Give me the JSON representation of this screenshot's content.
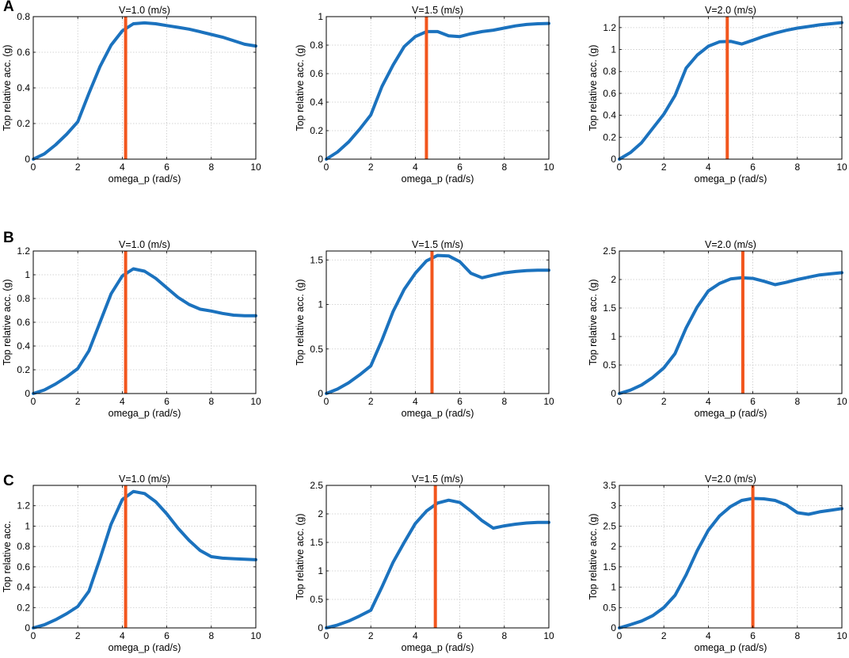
{
  "figure": {
    "row_labels": [
      "A",
      "B",
      "C"
    ]
  },
  "chart_data": [
    {
      "type": "line",
      "row": "A",
      "title": "V=1.0 (m/s)",
      "xlabel": "omega_p (rad/s)",
      "ylabel": "Top relative acc. (g)",
      "xlim": [
        0,
        10
      ],
      "ylim": [
        0,
        0.8
      ],
      "xticks": [
        0,
        2,
        4,
        6,
        8,
        10
      ],
      "yticks": [
        0,
        0.2,
        0.4,
        0.6,
        0.8
      ],
      "x": [
        0,
        0.5,
        1,
        1.5,
        2,
        2.5,
        3,
        3.5,
        4,
        4.5,
        5,
        5.5,
        6,
        6.5,
        7,
        7.5,
        8,
        8.5,
        9,
        9.5,
        10
      ],
      "y": [
        0,
        0.03,
        0.08,
        0.14,
        0.21,
        0.37,
        0.52,
        0.64,
        0.72,
        0.76,
        0.765,
        0.76,
        0.75,
        0.74,
        0.73,
        0.715,
        0.7,
        0.685,
        0.665,
        0.645,
        0.635
      ],
      "vline": 4.15,
      "grid": true
    },
    {
      "type": "line",
      "row": "A",
      "title": "V=1.5 (m/s)",
      "xlabel": "omega_p (rad/s)",
      "ylabel": "Top relative acc. (g)",
      "xlim": [
        0,
        10
      ],
      "ylim": [
        0,
        1
      ],
      "xticks": [
        0,
        2,
        4,
        6,
        8,
        10
      ],
      "yticks": [
        0,
        0.2,
        0.4,
        0.6,
        0.8,
        1
      ],
      "x": [
        0,
        0.5,
        1,
        1.5,
        2,
        2.5,
        3,
        3.5,
        4,
        4.5,
        5,
        5.5,
        6,
        6.5,
        7,
        7.5,
        8,
        8.5,
        9,
        9.5,
        10
      ],
      "y": [
        0,
        0.05,
        0.12,
        0.21,
        0.31,
        0.51,
        0.66,
        0.79,
        0.86,
        0.895,
        0.895,
        0.865,
        0.86,
        0.88,
        0.895,
        0.905,
        0.92,
        0.935,
        0.945,
        0.95,
        0.952
      ],
      "vline": 4.5,
      "grid": true
    },
    {
      "type": "line",
      "row": "A",
      "title": "V=2.0 (m/s)",
      "xlabel": "omega_p (rad/s)",
      "ylabel": "Top relative acc. (g)",
      "xlim": [
        0,
        10
      ],
      "ylim": [
        0,
        1.3
      ],
      "xticks": [
        0,
        2,
        4,
        6,
        8,
        10
      ],
      "yticks": [
        0,
        0.2,
        0.4,
        0.6,
        0.8,
        1,
        1.2
      ],
      "x": [
        0,
        0.5,
        1,
        1.5,
        2,
        2.5,
        3,
        3.5,
        4,
        4.5,
        5,
        5.5,
        6,
        6.5,
        7,
        7.5,
        8,
        8.5,
        9,
        9.5,
        10
      ],
      "y": [
        0,
        0.06,
        0.15,
        0.28,
        0.41,
        0.58,
        0.83,
        0.95,
        1.03,
        1.07,
        1.075,
        1.05,
        1.085,
        1.12,
        1.15,
        1.175,
        1.195,
        1.21,
        1.225,
        1.235,
        1.245
      ],
      "vline": 4.85,
      "grid": true
    },
    {
      "type": "line",
      "row": "B",
      "title": "V=1.0 (m/s)",
      "xlabel": "omega_p (rad/s)",
      "ylabel": "Top relative acc. (g)",
      "xlim": [
        0,
        10
      ],
      "ylim": [
        0,
        1.2
      ],
      "xticks": [
        0,
        2,
        4,
        6,
        8,
        10
      ],
      "yticks": [
        0,
        0.2,
        0.4,
        0.6,
        0.8,
        1,
        1.2
      ],
      "x": [
        0,
        0.5,
        1,
        1.5,
        2,
        2.5,
        3,
        3.5,
        4,
        4.5,
        5,
        5.5,
        6,
        6.5,
        7,
        7.5,
        8,
        8.5,
        9,
        9.5,
        10
      ],
      "y": [
        0,
        0.03,
        0.08,
        0.14,
        0.21,
        0.36,
        0.6,
        0.84,
        0.99,
        1.05,
        1.03,
        0.97,
        0.89,
        0.81,
        0.75,
        0.71,
        0.695,
        0.675,
        0.66,
        0.655,
        0.655
      ],
      "vline": 4.15,
      "grid": true
    },
    {
      "type": "line",
      "row": "B",
      "title": "V=1.5 (m/s)",
      "xlabel": "omega_p (rad/s)",
      "ylabel": "Top relative acc. (g)",
      "xlim": [
        0,
        10
      ],
      "ylim": [
        0,
        1.6
      ],
      "xticks": [
        0,
        2,
        4,
        6,
        8,
        10
      ],
      "yticks": [
        0,
        0.5,
        1,
        1.5
      ],
      "x": [
        0,
        0.5,
        1,
        1.5,
        2,
        2.5,
        3,
        3.5,
        4,
        4.5,
        5,
        5.5,
        6,
        6.5,
        7,
        7.5,
        8,
        8.5,
        9,
        9.5,
        10
      ],
      "y": [
        0,
        0.05,
        0.12,
        0.21,
        0.31,
        0.6,
        0.92,
        1.17,
        1.35,
        1.49,
        1.55,
        1.545,
        1.48,
        1.35,
        1.3,
        1.33,
        1.355,
        1.37,
        1.38,
        1.385,
        1.385
      ],
      "vline": 4.75,
      "grid": true
    },
    {
      "type": "line",
      "row": "B",
      "title": "V=2.0 (m/s)",
      "xlabel": "omega_p (rad/s)",
      "ylabel": "Top relative acc. (g)",
      "xlim": [
        0,
        10
      ],
      "ylim": [
        0,
        2.5
      ],
      "xticks": [
        0,
        2,
        4,
        6,
        8,
        10
      ],
      "yticks": [
        0,
        0.5,
        1,
        1.5,
        2,
        2.5
      ],
      "x": [
        0,
        0.5,
        1,
        1.5,
        2,
        2.5,
        3,
        3.5,
        4,
        4.5,
        5,
        5.5,
        6,
        6.5,
        7,
        7.5,
        8,
        8.5,
        9,
        9.5,
        10
      ],
      "y": [
        0,
        0.06,
        0.15,
        0.28,
        0.45,
        0.7,
        1.15,
        1.52,
        1.8,
        1.93,
        2.01,
        2.03,
        2.02,
        1.97,
        1.91,
        1.95,
        2.0,
        2.04,
        2.08,
        2.1,
        2.12
      ],
      "vline": 5.55,
      "grid": true
    },
    {
      "type": "line",
      "row": "C",
      "title": "V=1.0 (m/s)",
      "xlabel": "omega_p (rad/s)",
      "ylabel": "Top relative acc.",
      "xlim": [
        0,
        10
      ],
      "ylim": [
        0,
        1.4
      ],
      "xticks": [
        0,
        2,
        4,
        6,
        8,
        10
      ],
      "yticks": [
        0,
        0.2,
        0.4,
        0.6,
        0.8,
        1,
        1.2
      ],
      "x": [
        0,
        0.5,
        1,
        1.5,
        2,
        2.5,
        3,
        3.5,
        4,
        4.5,
        5,
        5.5,
        6,
        6.5,
        7,
        7.5,
        8,
        8.5,
        9,
        9.5,
        10
      ],
      "y": [
        0,
        0.03,
        0.08,
        0.14,
        0.21,
        0.36,
        0.68,
        1.02,
        1.26,
        1.34,
        1.32,
        1.24,
        1.12,
        0.98,
        0.86,
        0.76,
        0.7,
        0.685,
        0.68,
        0.675,
        0.67
      ],
      "vline": 4.15,
      "grid": true
    },
    {
      "type": "line",
      "row": "C",
      "title": "V=1.5 (m/s)",
      "xlabel": "omega_p (rad/s)",
      "ylabel": "Top relative acc. (g)",
      "xlim": [
        0,
        10
      ],
      "ylim": [
        0,
        2.5
      ],
      "xticks": [
        0,
        2,
        4,
        6,
        8,
        10
      ],
      "yticks": [
        0,
        0.5,
        1,
        1.5,
        2,
        2.5
      ],
      "x": [
        0,
        0.5,
        1,
        1.5,
        2,
        2.5,
        3,
        3.5,
        4,
        4.5,
        5,
        5.5,
        6,
        6.5,
        7,
        7.5,
        8,
        8.5,
        9,
        9.5,
        10
      ],
      "y": [
        0,
        0.05,
        0.12,
        0.21,
        0.31,
        0.72,
        1.15,
        1.5,
        1.83,
        2.05,
        2.19,
        2.24,
        2.2,
        2.05,
        1.88,
        1.75,
        1.79,
        1.82,
        1.84,
        1.85,
        1.85
      ],
      "vline": 4.9,
      "grid": true
    },
    {
      "type": "line",
      "row": "C",
      "title": "V=2.0 (m/s)",
      "xlabel": "omega_p (rad/s)",
      "ylabel": "Top relative acc. (g)",
      "xlim": [
        0,
        10
      ],
      "ylim": [
        0,
        3.5
      ],
      "xticks": [
        0,
        2,
        4,
        6,
        8,
        10
      ],
      "yticks": [
        0,
        0.5,
        1,
        1.5,
        2,
        2.5,
        3,
        3.5
      ],
      "x": [
        0,
        0.5,
        1,
        1.5,
        2,
        2.5,
        3,
        3.5,
        4,
        4.5,
        5,
        5.5,
        6,
        6.5,
        7,
        7.5,
        8,
        8.5,
        9,
        9.5,
        10
      ],
      "y": [
        0,
        0.08,
        0.17,
        0.3,
        0.5,
        0.8,
        1.3,
        1.9,
        2.4,
        2.75,
        2.98,
        3.13,
        3.18,
        3.17,
        3.13,
        3.02,
        2.83,
        2.79,
        2.85,
        2.89,
        2.93
      ],
      "vline": 6.0,
      "grid": true
    }
  ],
  "colors": {
    "series": "#1B72BE",
    "marker_line": "#F2561D",
    "grid": "#C8C8C8",
    "axis": "#000000"
  }
}
